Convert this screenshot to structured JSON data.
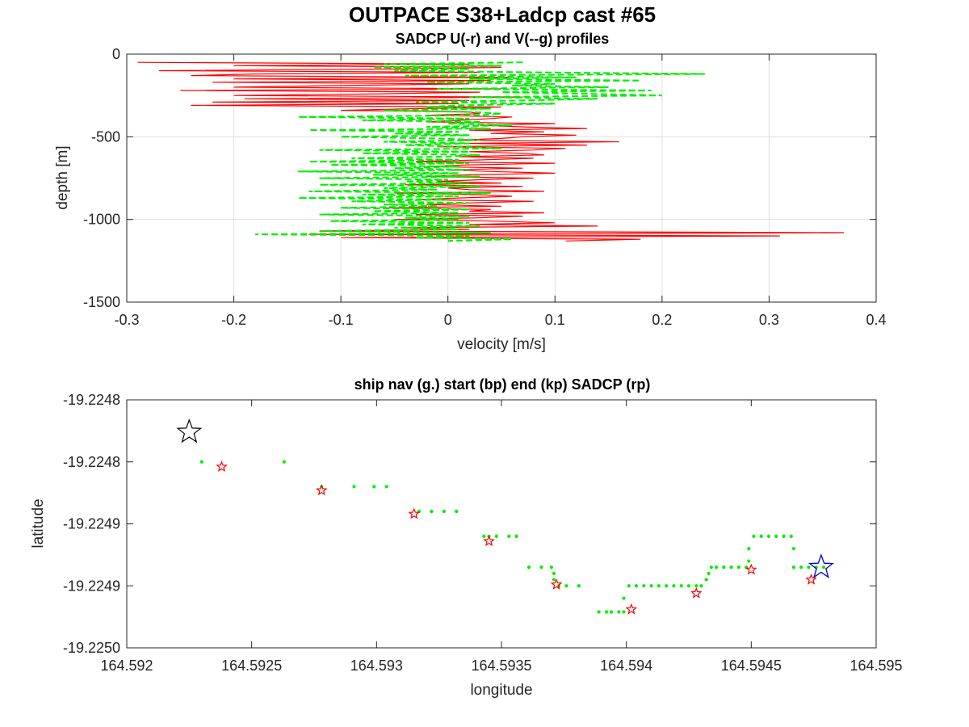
{
  "figure": {
    "title": "OUTPACE S38+Ladcp cast #65"
  },
  "chart_data": [
    {
      "type": "line",
      "title": "SADCP U(-r) and V(--g) profiles",
      "xlabel": "velocity [m/s]",
      "ylabel": "depth [m]",
      "xlim": [
        -0.3,
        0.4
      ],
      "ylim": [
        -1500,
        0
      ],
      "xticks": [
        -0.3,
        -0.2,
        -0.1,
        0,
        0.1,
        0.2,
        0.3,
        0.4
      ],
      "xtick_labels": [
        "-0.3",
        "-0.2",
        "-0.1",
        "0",
        "0.1",
        "0.2",
        "0.3",
        "0.4"
      ],
      "yticks": [
        0,
        -500,
        -1000,
        -1500
      ],
      "ytick_labels": [
        "0",
        "-500",
        "-1000",
        "-1500"
      ],
      "grid": true,
      "series": [
        {
          "name": "U",
          "color": "#ff0000",
          "style": "solid",
          "depth": [
            -50,
            -60,
            -70,
            -80,
            -90,
            -100,
            -110,
            -120,
            -130,
            -140,
            -150,
            -160,
            -170,
            -180,
            -190,
            -200,
            -210,
            -220,
            -230,
            -240,
            -250,
            -260,
            -270,
            -280,
            -290,
            -300,
            -310,
            -320,
            -330,
            -340,
            -350,
            -360,
            -370,
            -380,
            -390,
            -400,
            -410,
            -420,
            -430,
            -440,
            -450,
            -460,
            -470,
            -480,
            -490,
            -500,
            -510,
            -520,
            -530,
            -540,
            -550,
            -560,
            -570,
            -580,
            -590,
            -600,
            -610,
            -620,
            -630,
            -640,
            -650,
            -660,
            -670,
            -680,
            -690,
            -700,
            -710,
            -720,
            -730,
            -740,
            -750,
            -760,
            -770,
            -780,
            -790,
            -800,
            -810,
            -820,
            -830,
            -840,
            -850,
            -860,
            -870,
            -880,
            -890,
            -900,
            -910,
            -920,
            -930,
            -940,
            -950,
            -960,
            -970,
            -980,
            -990,
            -1000,
            -1010,
            -1020,
            -1030,
            -1040,
            -1050,
            -1060,
            -1070,
            -1080,
            -1090,
            -1100,
            -1110,
            -1120,
            -1130
          ],
          "values": [
            -0.29,
            0.02,
            -0.2,
            0.05,
            -0.05,
            -0.27,
            0.03,
            -0.18,
            -0.24,
            0.06,
            -0.2,
            0.04,
            -0.22,
            0.02,
            -0.1,
            -0.2,
            0.05,
            -0.25,
            0.03,
            -0.06,
            -0.2,
            0.07,
            -0.19,
            0.02,
            -0.22,
            0.01,
            -0.24,
            0.05,
            -0.03,
            -0.1,
            0.02,
            0.03,
            -0.02,
            0.06,
            0.04,
            0.01,
            -0.02,
            0.1,
            0.03,
            0.07,
            0.13,
            0.02,
            0.09,
            0.04,
            0.12,
            0.07,
            0.05,
            0.01,
            0.16,
            0.02,
            0.13,
            -0.01,
            0.11,
            0.08,
            0.02,
            0.07,
            0.09,
            0.01,
            0.08,
            0.03,
            -0.03,
            0.1,
            0.02,
            -0.02,
            0.07,
            0.0,
            0.04,
            0.1,
            0.02,
            -0.02,
            0.08,
            0.03,
            -0.01,
            0.05,
            -0.04,
            0.07,
            0.0,
            0.02,
            0.09,
            -0.05,
            0.03,
            0.06,
            0.01,
            -0.03,
            0.08,
            0.02,
            -0.02,
            0.05,
            -0.06,
            0.04,
            0.02,
            0.09,
            -0.03,
            0.07,
            0.03,
            -0.05,
            0.04,
            0.1,
            0.02,
            0.14,
            -0.04,
            0.02,
            -0.12,
            0.37,
            -0.13,
            0.31,
            -0.1,
            0.18,
            0.11
          ]
        },
        {
          "name": "V",
          "color": "#00ee00",
          "style": "dashed",
          "depth": [
            -50,
            -60,
            -70,
            -80,
            -90,
            -100,
            -110,
            -120,
            -130,
            -140,
            -150,
            -160,
            -170,
            -180,
            -190,
            -200,
            -210,
            -220,
            -230,
            -240,
            -250,
            -260,
            -270,
            -280,
            -290,
            -300,
            -310,
            -320,
            -330,
            -340,
            -350,
            -360,
            -370,
            -380,
            -390,
            -400,
            -410,
            -420,
            -430,
            -440,
            -450,
            -460,
            -470,
            -480,
            -490,
            -500,
            -510,
            -520,
            -530,
            -540,
            -550,
            -560,
            -570,
            -580,
            -590,
            -600,
            -610,
            -620,
            -630,
            -640,
            -650,
            -660,
            -670,
            -680,
            -690,
            -700,
            -710,
            -720,
            -730,
            -740,
            -750,
            -760,
            -770,
            -780,
            -790,
            -800,
            -810,
            -820,
            -830,
            -840,
            -850,
            -860,
            -870,
            -880,
            -890,
            -900,
            -910,
            -920,
            -930,
            -940,
            -950,
            -960,
            -970,
            -980,
            -990,
            -1000,
            -1010,
            -1020,
            -1030,
            -1040,
            -1050,
            -1060,
            -1070,
            -1080,
            -1090,
            -1100,
            -1110,
            -1120,
            -1130
          ],
          "values": [
            0.07,
            -0.06,
            0.05,
            -0.07,
            0.02,
            -0.05,
            0.08,
            0.24,
            -0.04,
            0.12,
            0.02,
            0.18,
            -0.02,
            0.1,
            0.06,
            0.15,
            -0.01,
            0.19,
            0.05,
            0.13,
            0.2,
            0.02,
            0.14,
            0.07,
            -0.03,
            0.1,
            0.01,
            -0.02,
            0.04,
            -0.06,
            0.02,
            0.05,
            0.03,
            -0.14,
            0.02,
            -0.08,
            0.03,
            0.0,
            0.06,
            -0.02,
            0.04,
            -0.13,
            0.01,
            -0.05,
            0.02,
            -0.1,
            -0.01,
            0.03,
            -0.06,
            0.02,
            -0.04,
            0.01,
            0.05,
            -0.12,
            0.02,
            -0.08,
            0.03,
            0.0,
            -0.09,
            0.01,
            -0.13,
            0.02,
            -0.11,
            0.01,
            -0.05,
            0.02,
            -0.14,
            0.01,
            -0.07,
            0.03,
            -0.12,
            0.0,
            -0.04,
            0.02,
            -0.12,
            0.03,
            -0.06,
            -0.01,
            -0.13,
            0.04,
            -0.08,
            0.01,
            -0.14,
            0.0,
            -0.09,
            0.02,
            -0.06,
            -0.01,
            -0.1,
            0.02,
            -0.07,
            0.01,
            -0.12,
            0.02,
            -0.04,
            0.01,
            -0.11,
            0.02,
            -0.08,
            0.03,
            -0.05,
            0.01,
            -0.12,
            0.04,
            -0.18,
            0.02,
            -0.03,
            0.06,
            0.0
          ]
        }
      ]
    },
    {
      "type": "scatter",
      "title": "ship nav (g.) start (bp) end (kp) SADCP (rp)",
      "xlabel": "longitude",
      "ylabel": "latitude",
      "xlim": [
        164.592,
        164.595
      ],
      "ylim": [
        -19.225,
        -19.2248
      ],
      "xticks": [
        164.592,
        164.5925,
        164.593,
        164.5935,
        164.594,
        164.5945,
        164.595
      ],
      "xtick_labels": [
        "164.592",
        "164.5925",
        "164.593",
        "164.5935",
        "164.594",
        "164.5945",
        "164.595"
      ],
      "yticks": [
        -19.2248,
        -19.22485,
        -19.2249,
        -19.22495,
        -19.225
      ],
      "ytick_labels": [
        "-19.2248",
        "-19.2248",
        "-19.2249",
        "-19.2249",
        "-19.2250"
      ],
      "grid": false,
      "ship_nav": {
        "name": "ship nav",
        "color": "#00ee00",
        "points": [
          [
            164.5923,
            -19.22485
          ],
          [
            164.59263,
            -19.22485
          ],
          [
            164.59278,
            -19.22487
          ],
          [
            164.59291,
            -19.22487
          ],
          [
            164.59299,
            -19.22487
          ],
          [
            164.59304,
            -19.22487
          ],
          [
            164.59317,
            -19.22489
          ],
          [
            164.59322,
            -19.22489
          ],
          [
            164.59327,
            -19.22489
          ],
          [
            164.59332,
            -19.22489
          ],
          [
            164.59343,
            -19.22491
          ],
          [
            164.59345,
            -19.22491
          ],
          [
            164.59348,
            -19.22491
          ],
          [
            164.59353,
            -19.22491
          ],
          [
            164.59356,
            -19.22491
          ],
          [
            164.59361,
            -19.224935
          ],
          [
            164.59366,
            -19.224935
          ],
          [
            164.5937,
            -19.224935
          ],
          [
            164.59371,
            -19.22494
          ],
          [
            164.59371,
            -19.224945
          ],
          [
            164.59373,
            -19.22495
          ],
          [
            164.59376,
            -19.22495
          ],
          [
            164.59381,
            -19.22495
          ],
          [
            164.59389,
            -19.224971
          ],
          [
            164.59392,
            -19.224971
          ],
          [
            164.59394,
            -19.224971
          ],
          [
            164.59397,
            -19.224971
          ],
          [
            164.59399,
            -19.224971
          ],
          [
            164.59399,
            -19.22496
          ],
          [
            164.59401,
            -19.22495
          ],
          [
            164.59404,
            -19.22495
          ],
          [
            164.59407,
            -19.22495
          ],
          [
            164.5941,
            -19.22495
          ],
          [
            164.59413,
            -19.22495
          ],
          [
            164.59416,
            -19.22495
          ],
          [
            164.59419,
            -19.22495
          ],
          [
            164.59422,
            -19.22495
          ],
          [
            164.59425,
            -19.22495
          ],
          [
            164.59428,
            -19.22495
          ],
          [
            164.5943,
            -19.22495
          ],
          [
            164.59432,
            -19.224945
          ],
          [
            164.59433,
            -19.22494
          ],
          [
            164.59434,
            -19.224935
          ],
          [
            164.59436,
            -19.224935
          ],
          [
            164.59439,
            -19.224935
          ],
          [
            164.59442,
            -19.224935
          ],
          [
            164.59445,
            -19.224935
          ],
          [
            164.59448,
            -19.224935
          ],
          [
            164.59449,
            -19.22493
          ],
          [
            164.59449,
            -19.22492
          ],
          [
            164.59451,
            -19.22491
          ],
          [
            164.59454,
            -19.22491
          ],
          [
            164.59457,
            -19.22491
          ],
          [
            164.5946,
            -19.22491
          ],
          [
            164.59463,
            -19.22491
          ],
          [
            164.59466,
            -19.22491
          ],
          [
            164.59467,
            -19.22492
          ],
          [
            164.59467,
            -19.224935
          ],
          [
            164.5947,
            -19.224935
          ],
          [
            164.59473,
            -19.224935
          ],
          [
            164.59476,
            -19.224935
          ],
          [
            164.59479,
            -19.224935
          ]
        ]
      },
      "sadcp": {
        "name": "SADCP",
        "color": "#ff0000",
        "points": [
          [
            164.59238,
            -19.224854
          ],
          [
            164.59278,
            -19.224873
          ],
          [
            164.59315,
            -19.224892
          ],
          [
            164.59345,
            -19.224914
          ],
          [
            164.59372,
            -19.224949
          ],
          [
            164.59402,
            -19.224969
          ],
          [
            164.59428,
            -19.224956
          ],
          [
            164.5945,
            -19.224937
          ],
          [
            164.59474,
            -19.224945
          ]
        ]
      },
      "start": {
        "name": "start",
        "color": "#0000cc",
        "lon": 164.59478,
        "lat": -19.224935
      },
      "end": {
        "name": "end",
        "color": "#000000",
        "lon": 164.59225,
        "lat": -19.224826
      }
    }
  ]
}
